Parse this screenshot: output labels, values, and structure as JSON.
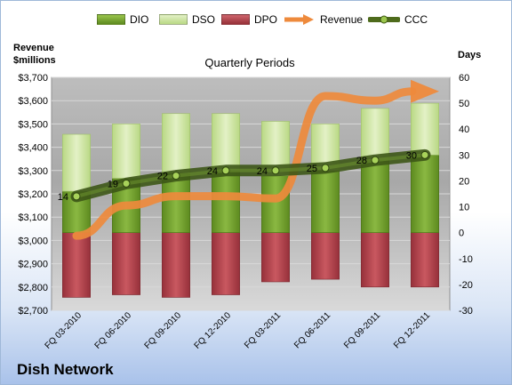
{
  "legend": {
    "dio": "DIO",
    "dso": "DSO",
    "dpo": "DPO",
    "revenue": "Revenue",
    "ccc": "CCC"
  },
  "axes": {
    "left_title_line1": "Revenue",
    "left_title_line2": "$millions",
    "right_title": "Days"
  },
  "plot_title": "Quarterly Periods",
  "company": "Dish Network",
  "colors": {
    "dio": "#76a02c",
    "dso": "#c9e29a",
    "dpo": "#b5444c",
    "revenue": "#ee8a3c",
    "ccc": "#4e6b1c"
  },
  "chart_data": {
    "type": "bar",
    "categories": [
      "FQ 03-2010",
      "FQ 06-2010",
      "FQ 09-2010",
      "FQ 12-2010",
      "FQ 03-2011",
      "FQ 06-2011",
      "FQ 09-2011",
      "FQ 12-2011"
    ],
    "series": [
      {
        "name": "DIO",
        "axis": "right",
        "values": [
          16,
          21,
          23,
          24,
          22,
          24,
          28,
          30
        ]
      },
      {
        "name": "DSO",
        "axis": "right",
        "values": [
          22,
          21,
          23,
          22,
          21,
          18,
          20,
          20
        ]
      },
      {
        "name": "DPO",
        "axis": "right",
        "values": [
          -25,
          -24,
          -25,
          -24,
          -19,
          -18,
          -21,
          -21
        ]
      },
      {
        "name": "Revenue",
        "axis": "left",
        "values": [
          3020,
          3150,
          3190,
          3190,
          3180,
          3620,
          3600,
          3640
        ]
      },
      {
        "name": "CCC",
        "axis": "right",
        "values": [
          14,
          19,
          22,
          24,
          24,
          25,
          28,
          30
        ],
        "labels": [
          "14",
          "19",
          "22",
          "24",
          "24",
          "25",
          "28",
          "30"
        ]
      }
    ],
    "y_left": {
      "range": [
        2700,
        3700
      ],
      "ticks": [
        "$2,700",
        "$2,800",
        "$2,900",
        "$3,000",
        "$3,100",
        "$3,200",
        "$3,300",
        "$3,400",
        "$3,500",
        "$3,600",
        "$3,700"
      ]
    },
    "y_right": {
      "range": [
        -30,
        60
      ],
      "ticks": [
        "-30",
        "-20",
        "-10",
        "0",
        "10",
        "20",
        "30",
        "40",
        "50",
        "60"
      ]
    },
    "grid": true,
    "legend_position": "top"
  }
}
